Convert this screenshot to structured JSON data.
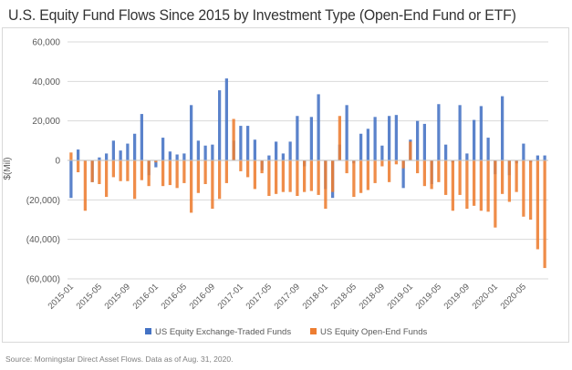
{
  "title": "U.S. Equity Fund Flows Since 2015 by Investment Type (Open-End Fund or ETF)",
  "source": "Source: Morningstar Direct Asset Flows. Data as of Aug. 31, 2020.",
  "colors": {
    "etf": "#4472c4",
    "open_end": "#ed7d31",
    "gridline": "#d9d9d9",
    "axis_text": "#595959"
  },
  "chart_data": {
    "type": "bar",
    "title": "",
    "xlabel": "",
    "ylabel": "$(Mil)",
    "ylim": [
      -60000,
      60000
    ],
    "yticks": [
      60000,
      40000,
      20000,
      0,
      -20000,
      -40000,
      -60000
    ],
    "ytick_labels": [
      "60,000",
      "40,000",
      "20,000",
      "0",
      "(20,000)",
      "(40,000)",
      "(60,000)"
    ],
    "grid": true,
    "legend": "bottom",
    "categories": [
      "2015-01",
      "2015-02",
      "2015-03",
      "2015-04",
      "2015-05",
      "2015-06",
      "2015-07",
      "2015-08",
      "2015-09",
      "2015-10",
      "2015-11",
      "2015-12",
      "2016-01",
      "2016-02",
      "2016-03",
      "2016-04",
      "2016-05",
      "2016-06",
      "2016-07",
      "2016-08",
      "2016-09",
      "2016-10",
      "2016-11",
      "2016-12",
      "2017-01",
      "2017-02",
      "2017-03",
      "2017-04",
      "2017-05",
      "2017-06",
      "2017-07",
      "2017-08",
      "2017-09",
      "2017-10",
      "2017-11",
      "2017-12",
      "2018-01",
      "2018-02",
      "2018-03",
      "2018-04",
      "2018-05",
      "2018-06",
      "2018-07",
      "2018-08",
      "2018-09",
      "2018-10",
      "2018-11",
      "2018-12",
      "2019-01",
      "2019-02",
      "2019-03",
      "2019-04",
      "2019-05",
      "2019-06",
      "2019-07",
      "2019-08",
      "2019-09",
      "2019-10",
      "2019-11",
      "2019-12",
      "2020-01",
      "2020-02",
      "2020-03",
      "2020-04",
      "2020-05",
      "2020-06",
      "2020-07",
      "2020-08"
    ],
    "xtick_labels": [
      "2015-01",
      "2015-05",
      "2015-09",
      "2016-01",
      "2016-05",
      "2016-09",
      "2017-01",
      "2017-05",
      "2017-09",
      "2018-01",
      "2018-05",
      "2018-09",
      "2019-01",
      "2019-05",
      "2019-09",
      "2020-01",
      "2020-05"
    ],
    "series": [
      {
        "name": "US Equity Exchange-Traded Funds",
        "values": [
          -19000,
          5500,
          0,
          -11000,
          1500,
          3500,
          10000,
          5000,
          8500,
          13500,
          23500,
          -7500,
          -3500,
          11500,
          4500,
          3000,
          3500,
          28000,
          10000,
          7500,
          8000,
          35500,
          41500,
          10000,
          17500,
          17500,
          10500,
          -5000,
          2500,
          9500,
          3500,
          9500,
          22500,
          -3000,
          22000,
          33500,
          -14500,
          -19000,
          8000,
          28000,
          -1500,
          13500,
          16000,
          22000,
          7500,
          22500,
          23000,
          -14000,
          10500,
          20000,
          18500,
          -12000,
          28500,
          8000,
          -1000,
          28000,
          3500,
          20500,
          27500,
          11500,
          -7000,
          32500,
          -7500,
          -1500,
          8500,
          -1000,
          2500,
          2500
        ]
      },
      {
        "name": "US Equity Open-End Funds",
        "values": [
          4000,
          -6000,
          -25500,
          -11000,
          -12000,
          -18500,
          -8500,
          -10500,
          -10500,
          -19500,
          -10000,
          -13000,
          -1000,
          -13000,
          -12500,
          -14000,
          -11500,
          -26500,
          -16500,
          -12000,
          -24500,
          -19500,
          -11500,
          21000,
          -5500,
          -8500,
          -14500,
          -6500,
          -18000,
          -17000,
          -16000,
          -16000,
          -18000,
          -16000,
          -15500,
          -17500,
          -24500,
          -16000,
          22500,
          -6500,
          -18500,
          -16500,
          -15000,
          -11500,
          -3000,
          -11000,
          -2000,
          -4000,
          9500,
          -6500,
          -13000,
          -14500,
          -11000,
          -17500,
          -25500,
          -17500,
          -24500,
          -23000,
          -25500,
          -26000,
          -34000,
          -17000,
          -21000,
          -16000,
          -28500,
          -30000,
          -45000,
          -54500
        ]
      }
    ]
  }
}
